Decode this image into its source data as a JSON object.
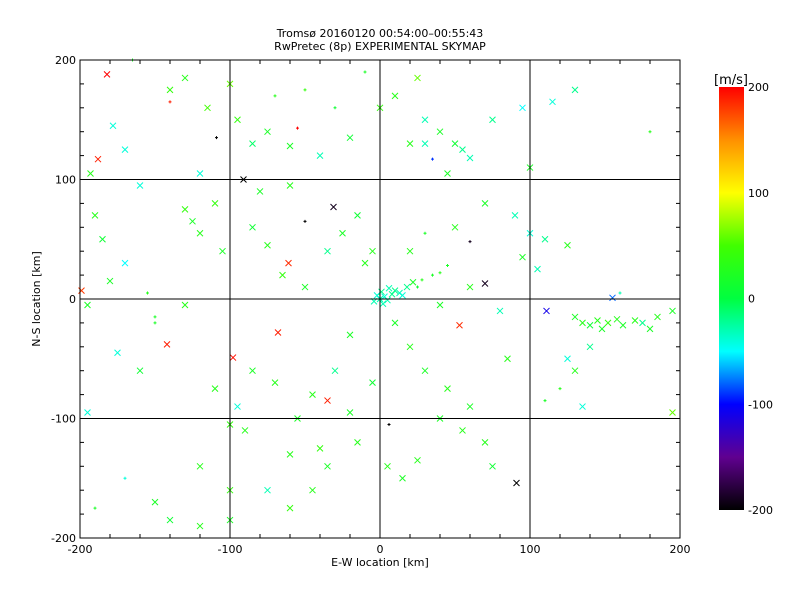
{
  "chart_data": {
    "type": "scatter",
    "title": "Tromsø 20160120 00:54:00–00:55:43",
    "subtitle": "RwPretec (8p) EXPERIMENTAL SKYMAP",
    "xlabel": "E-W location [km]",
    "ylabel": "N-S location [km]",
    "xlim": [
      -200,
      200
    ],
    "ylim": [
      -200,
      200
    ],
    "xticks": [
      -200,
      -100,
      0,
      100,
      200
    ],
    "yticks": [
      -200,
      -100,
      0,
      100,
      200
    ],
    "grid": [
      -100,
      0,
      100
    ],
    "colorbar": {
      "label": "[m/s]",
      "range": [
        -200,
        200
      ],
      "ticks": [
        200,
        100,
        0,
        -100,
        -200
      ],
      "placement": "right"
    },
    "colormap": [
      [
        -200,
        "#000000"
      ],
      [
        -150,
        "#600090"
      ],
      [
        -100,
        "#0000ff"
      ],
      [
        -50,
        "#00ffff"
      ],
      [
        0,
        "#00ff40"
      ],
      [
        50,
        "#40ff00"
      ],
      [
        100,
        "#ffff00"
      ],
      [
        150,
        "#ff9000"
      ],
      [
        200,
        "#ff0000"
      ]
    ],
    "points_format": [
      "x_km",
      "y_km",
      "velocity_mps",
      "marker(1=cross,0=dot)"
    ],
    "points": [
      [
        -182,
        188,
        200,
        1
      ],
      [
        -188,
        117,
        190,
        1
      ],
      [
        -199,
        7,
        180,
        1
      ],
      [
        -142,
        -38,
        190,
        1
      ],
      [
        -98,
        -49,
        195,
        1
      ],
      [
        -68,
        -28,
        190,
        1
      ],
      [
        -61,
        30,
        185,
        1
      ],
      [
        -35,
        -85,
        190,
        1
      ],
      [
        53,
        -22,
        185,
        1
      ],
      [
        -91,
        100,
        -200,
        1
      ],
      [
        -31,
        77,
        -190,
        1
      ],
      [
        70,
        13,
        -190,
        1
      ],
      [
        91,
        -154,
        -200,
        1
      ],
      [
        111,
        -10,
        -110,
        1
      ],
      [
        35,
        117,
        -90,
        0
      ],
      [
        155,
        1,
        -80,
        1
      ],
      [
        -55,
        143,
        200,
        0
      ],
      [
        -140,
        165,
        190,
        0
      ],
      [
        -109,
        135,
        -200,
        0
      ],
      [
        6,
        -105,
        -200,
        0
      ],
      [
        -50,
        65,
        -200,
        0
      ],
      [
        60,
        48,
        -190,
        0
      ],
      [
        -165,
        200,
        20,
        0
      ],
      [
        -178,
        145,
        -40,
        1
      ],
      [
        -170,
        125,
        -40,
        1
      ],
      [
        -193,
        105,
        30,
        1
      ],
      [
        -130,
        185,
        30,
        1
      ],
      [
        -140,
        175,
        40,
        1
      ],
      [
        -115,
        160,
        50,
        1
      ],
      [
        -100,
        180,
        60,
        1
      ],
      [
        -95,
        150,
        40,
        1
      ],
      [
        -85,
        130,
        -10,
        1
      ],
      [
        -75,
        140,
        20,
        1
      ],
      [
        -60,
        128,
        20,
        1
      ],
      [
        -40,
        120,
        -30,
        1
      ],
      [
        -20,
        135,
        10,
        1
      ],
      [
        0,
        160,
        40,
        1
      ],
      [
        10,
        170,
        30,
        1
      ],
      [
        25,
        185,
        60,
        1
      ],
      [
        -70,
        170,
        30,
        0
      ],
      [
        -50,
        175,
        40,
        0
      ],
      [
        -30,
        160,
        10,
        0
      ],
      [
        -10,
        190,
        20,
        0
      ],
      [
        30,
        150,
        -30,
        1
      ],
      [
        40,
        140,
        20,
        1
      ],
      [
        50,
        130,
        10,
        1
      ],
      [
        55,
        125,
        -20,
        1
      ],
      [
        60,
        118,
        -30,
        1
      ],
      [
        20,
        130,
        30,
        1
      ],
      [
        30,
        130,
        -30,
        1
      ],
      [
        45,
        105,
        20,
        1
      ],
      [
        75,
        150,
        -20,
        1
      ],
      [
        95,
        160,
        -50,
        1
      ],
      [
        115,
        165,
        -40,
        1
      ],
      [
        130,
        175,
        -20,
        1
      ],
      [
        180,
        140,
        30,
        0
      ],
      [
        -190,
        70,
        30,
        1
      ],
      [
        -185,
        50,
        10,
        1
      ],
      [
        -170,
        30,
        -50,
        1
      ],
      [
        -180,
        15,
        20,
        1
      ],
      [
        -155,
        5,
        30,
        0
      ],
      [
        -130,
        75,
        40,
        1
      ],
      [
        -125,
        65,
        20,
        1
      ],
      [
        -120,
        55,
        30,
        1
      ],
      [
        -110,
        80,
        40,
        1
      ],
      [
        -105,
        40,
        20,
        1
      ],
      [
        -85,
        60,
        10,
        1
      ],
      [
        -75,
        45,
        30,
        1
      ],
      [
        -65,
        20,
        40,
        1
      ],
      [
        -50,
        10,
        20,
        1
      ],
      [
        -35,
        40,
        -20,
        1
      ],
      [
        -25,
        55,
        20,
        1
      ],
      [
        -15,
        70,
        10,
        1
      ],
      [
        -10,
        30,
        30,
        1
      ],
      [
        -130,
        -5,
        30,
        1
      ],
      [
        -150,
        -15,
        20,
        0
      ],
      [
        -175,
        -45,
        -40,
        1
      ],
      [
        -160,
        -60,
        10,
        1
      ],
      [
        -110,
        -75,
        30,
        1
      ],
      [
        -95,
        -90,
        -40,
        1
      ],
      [
        -85,
        -60,
        20,
        1
      ],
      [
        -70,
        -70,
        30,
        1
      ],
      [
        -55,
        -100,
        20,
        1
      ],
      [
        -45,
        -80,
        30,
        1
      ],
      [
        -30,
        -60,
        -20,
        1
      ],
      [
        -20,
        -95,
        20,
        1
      ],
      [
        -15,
        -120,
        30,
        1
      ],
      [
        -5,
        -70,
        10,
        1
      ],
      [
        -40,
        -125,
        40,
        1
      ],
      [
        -60,
        -130,
        30,
        1
      ],
      [
        -75,
        -160,
        -30,
        1
      ],
      [
        -100,
        -185,
        20,
        1
      ],
      [
        -120,
        -190,
        30,
        1
      ],
      [
        -150,
        -170,
        20,
        1
      ],
      [
        -140,
        -185,
        10,
        1
      ],
      [
        -120,
        -140,
        30,
        1
      ],
      [
        -100,
        -160,
        40,
        1
      ],
      [
        -90,
        -110,
        30,
        1
      ],
      [
        -170,
        -150,
        -40,
        0
      ],
      [
        -190,
        -175,
        20,
        0
      ],
      [
        -195,
        -5,
        20,
        1
      ],
      [
        -195,
        -95,
        -40,
        1
      ],
      [
        -35,
        -140,
        20,
        1
      ],
      [
        -45,
        -160,
        30,
        1
      ],
      [
        -60,
        -175,
        40,
        1
      ],
      [
        0,
        0,
        -30,
        1
      ],
      [
        3,
        2,
        -40,
        1
      ],
      [
        5,
        -1,
        -30,
        1
      ],
      [
        8,
        4,
        -20,
        1
      ],
      [
        -2,
        3,
        -40,
        1
      ],
      [
        2,
        -4,
        -30,
        1
      ],
      [
        10,
        7,
        -20,
        1
      ],
      [
        13,
        5,
        -30,
        1
      ],
      [
        15,
        3,
        -40,
        1
      ],
      [
        6,
        9,
        -30,
        1
      ],
      [
        -4,
        -2,
        -30,
        1
      ],
      [
        1,
        6,
        -20,
        1
      ],
      [
        18,
        10,
        -20,
        1
      ],
      [
        22,
        14,
        20,
        1
      ],
      [
        28,
        16,
        30,
        0
      ],
      [
        35,
        20,
        20,
        0
      ],
      [
        40,
        22,
        30,
        0
      ],
      [
        45,
        28,
        20,
        0
      ],
      [
        25,
        10,
        10,
        0
      ],
      [
        20,
        40,
        30,
        1
      ],
      [
        30,
        55,
        20,
        0
      ],
      [
        50,
        60,
        30,
        1
      ],
      [
        70,
        80,
        20,
        1
      ],
      [
        90,
        70,
        -30,
        1
      ],
      [
        100,
        55,
        -40,
        1
      ],
      [
        110,
        50,
        -20,
        1
      ],
      [
        125,
        45,
        30,
        1
      ],
      [
        95,
        35,
        20,
        1
      ],
      [
        105,
        25,
        -30,
        1
      ],
      [
        60,
        10,
        30,
        1
      ],
      [
        40,
        -5,
        20,
        1
      ],
      [
        80,
        -10,
        -30,
        1
      ],
      [
        10,
        -20,
        20,
        1
      ],
      [
        20,
        -40,
        30,
        1
      ],
      [
        30,
        -60,
        20,
        1
      ],
      [
        45,
        -75,
        30,
        1
      ],
      [
        60,
        -90,
        20,
        1
      ],
      [
        70,
        -120,
        30,
        1
      ],
      [
        75,
        -140,
        10,
        1
      ],
      [
        55,
        -110,
        30,
        1
      ],
      [
        40,
        -100,
        20,
        1
      ],
      [
        25,
        -135,
        30,
        1
      ],
      [
        15,
        -150,
        20,
        1
      ],
      [
        5,
        -140,
        30,
        1
      ],
      [
        130,
        -15,
        20,
        1
      ],
      [
        135,
        -20,
        30,
        1
      ],
      [
        140,
        -22,
        10,
        1
      ],
      [
        145,
        -18,
        30,
        1
      ],
      [
        148,
        -25,
        20,
        1
      ],
      [
        152,
        -20,
        40,
        1
      ],
      [
        158,
        -17,
        30,
        1
      ],
      [
        162,
        -22,
        20,
        1
      ],
      [
        170,
        -18,
        30,
        1
      ],
      [
        175,
        -20,
        -20,
        1
      ],
      [
        180,
        -25,
        20,
        1
      ],
      [
        185,
        -15,
        30,
        1
      ],
      [
        195,
        -10,
        20,
        1
      ],
      [
        140,
        -40,
        -20,
        1
      ],
      [
        130,
        -60,
        30,
        1
      ],
      [
        125,
        -50,
        -40,
        1
      ],
      [
        135,
        -90,
        -40,
        1
      ],
      [
        120,
        -75,
        30,
        0
      ],
      [
        110,
        -85,
        20,
        0
      ],
      [
        195,
        -95,
        60,
        1
      ],
      [
        160,
        5,
        -30,
        0
      ],
      [
        100,
        110,
        20,
        1
      ],
      [
        85,
        -50,
        30,
        1
      ],
      [
        -20,
        -30,
        20,
        1
      ],
      [
        -5,
        40,
        30,
        1
      ],
      [
        -160,
        95,
        -40,
        1
      ],
      [
        -150,
        -20,
        20,
        0
      ],
      [
        -60,
        95,
        30,
        1
      ],
      [
        -80,
        90,
        20,
        1
      ],
      [
        -120,
        105,
        -40,
        1
      ],
      [
        -100,
        -105,
        40,
        1
      ]
    ]
  }
}
